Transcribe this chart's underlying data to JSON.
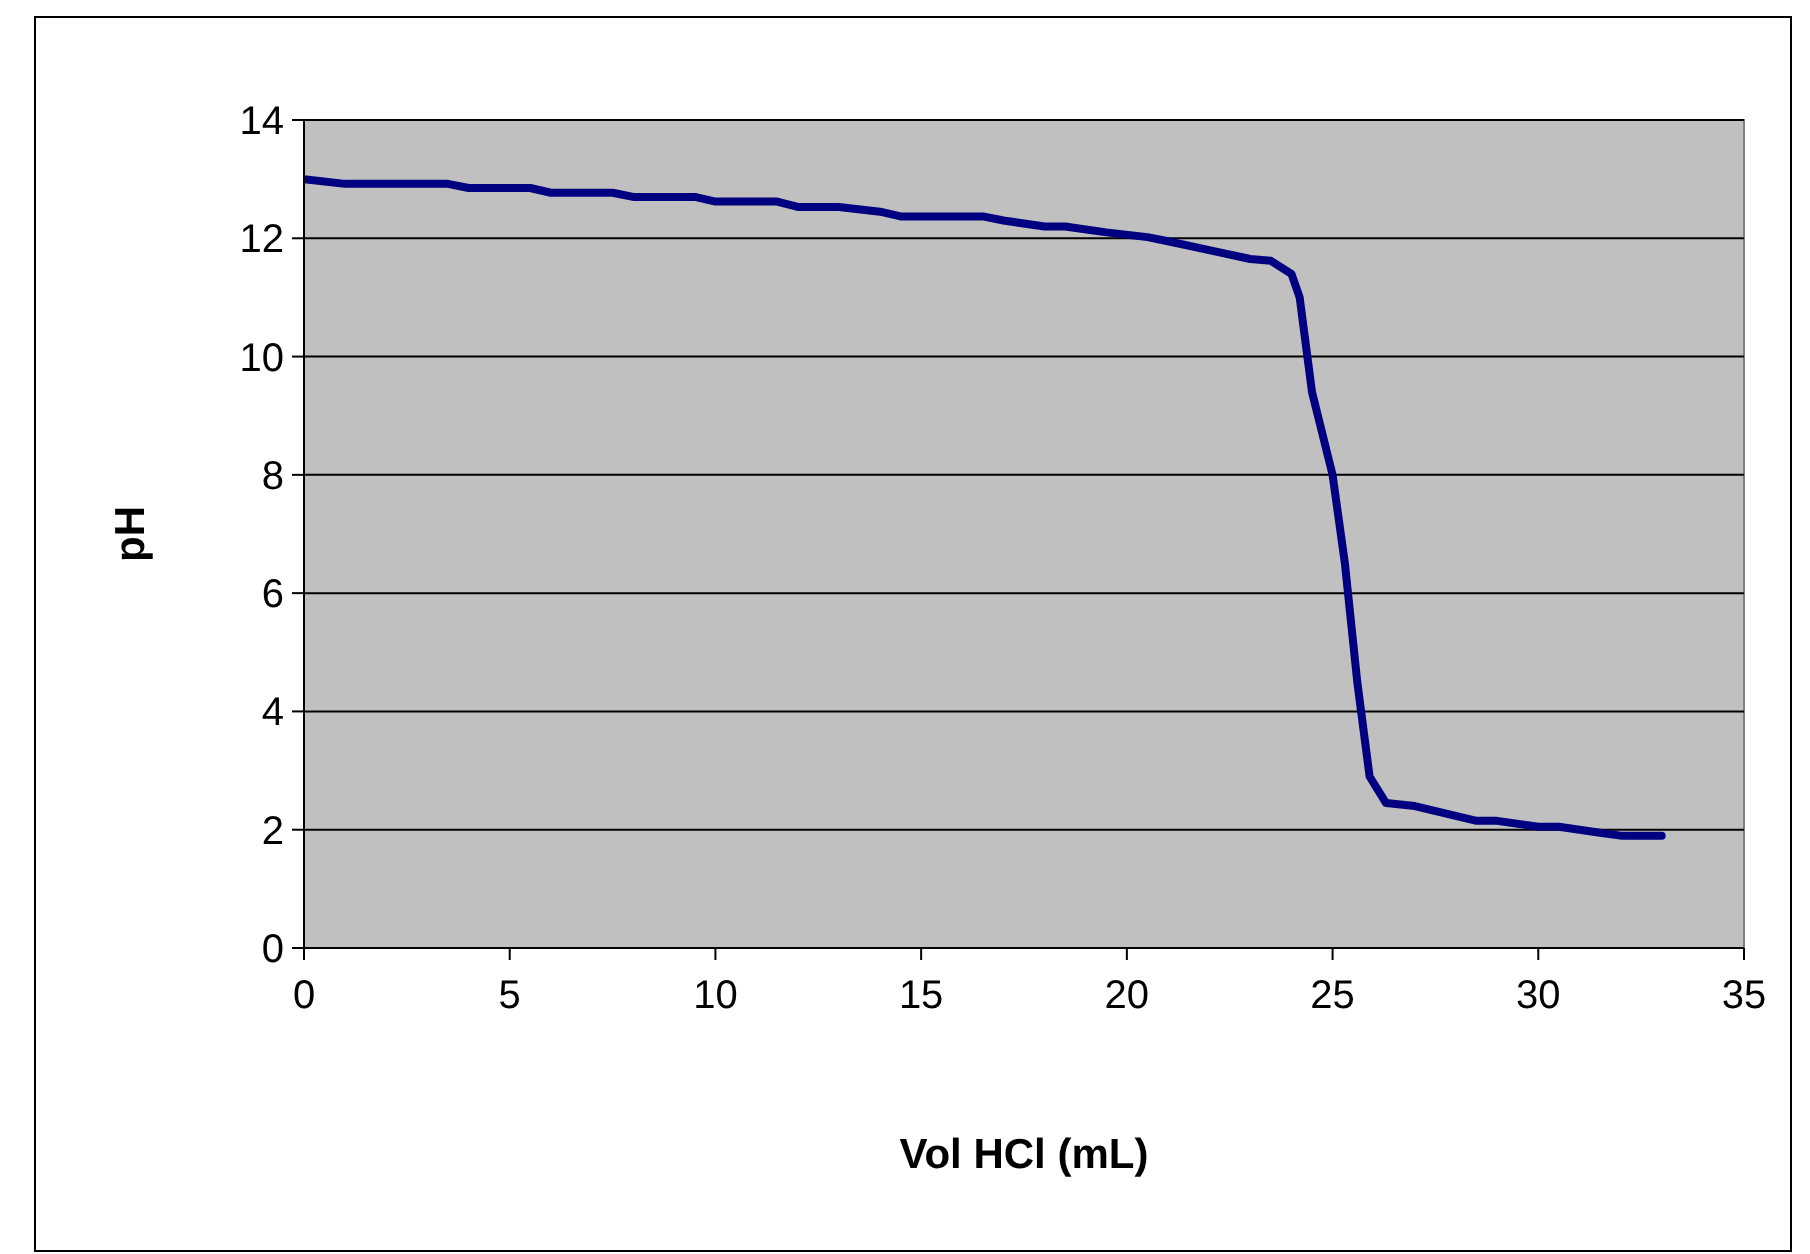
{
  "chart_data": {
    "type": "line",
    "xlabel": "Vol HCl (mL)",
    "ylabel": "pH",
    "xlim": [
      0,
      35
    ],
    "xticks": [
      0,
      5,
      10,
      15,
      20,
      25,
      30,
      35
    ],
    "ylim": [
      0,
      14
    ],
    "yticks": [
      0,
      2,
      4,
      6,
      8,
      10,
      12,
      14
    ],
    "grid": "y",
    "marker": "none",
    "line_style": "solid",
    "series": [
      {
        "color": "#000080",
        "x": [
          0,
          1,
          3.5,
          4,
          5.5,
          6,
          7.5,
          8,
          9.5,
          10,
          11.5,
          12,
          13,
          14,
          14.5,
          16.5,
          17,
          18,
          18.5,
          19.5,
          20.5,
          21,
          22,
          23,
          23.5,
          24,
          24.2,
          24.5,
          25,
          25.3,
          25.6,
          25.9,
          26.3,
          27,
          28.5,
          29,
          30,
          30.5,
          31.5,
          32,
          33
        ],
        "values": [
          13,
          12.92,
          12.92,
          12.85,
          12.85,
          12.77,
          12.77,
          12.7,
          12.7,
          12.62,
          12.62,
          12.53,
          12.53,
          12.45,
          12.37,
          12.37,
          12.3,
          12.2,
          12.2,
          12.1,
          12.02,
          11.95,
          11.8,
          11.65,
          11.62,
          11.4,
          11,
          9.4,
          8,
          6.5,
          4.5,
          2.9,
          2.45,
          2.4,
          2.15,
          2.15,
          2.05,
          2.05,
          1.95,
          1.9,
          1.9
        ]
      }
    ]
  }
}
